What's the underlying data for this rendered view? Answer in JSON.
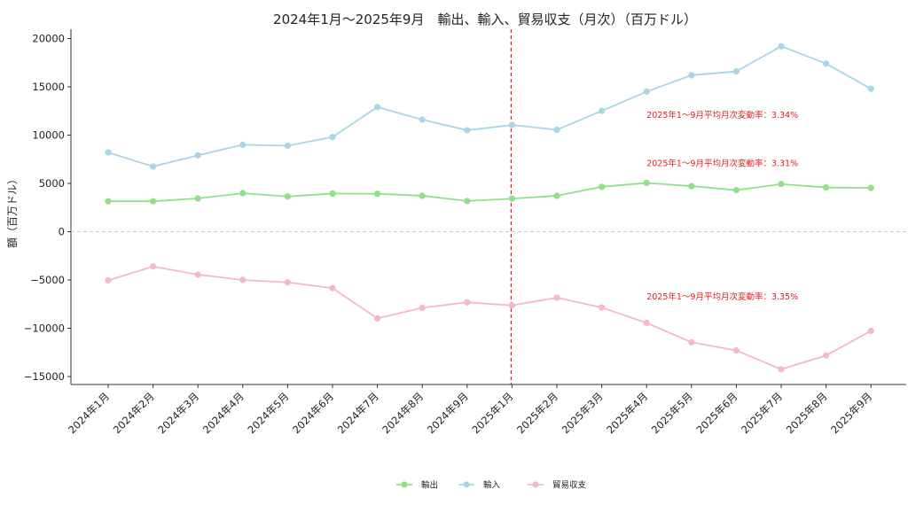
{
  "chart_data": {
    "type": "line",
    "title": "2024年1月～2025年9月　輸出、輸入、貿易収支（月次）（百万ドル）",
    "xlabel": "",
    "ylabel": "額（百万ドル）",
    "ylim": [
      -16000,
      21000
    ],
    "yticks": [
      20000,
      15000,
      10000,
      5000,
      0,
      -5000,
      -10000,
      -15000
    ],
    "ytick_labels": [
      "20000",
      "15000",
      "10000",
      "5000",
      "0",
      "−5000",
      "−10000",
      "−15000"
    ],
    "categories": [
      "2024年1月",
      "2024年2月",
      "2024年3月",
      "2024年4月",
      "2024年5月",
      "2024年6月",
      "2024年7月",
      "2024年8月",
      "2024年9月",
      "2025年1月",
      "2025年2月",
      "2025年3月",
      "2025年4月",
      "2025年5月",
      "2025年6月",
      "2025年7月",
      "2025年8月",
      "2025年9月"
    ],
    "series": [
      {
        "name": "輸出",
        "color": "#90e08a",
        "values": [
          3150,
          3150,
          3450,
          3980,
          3650,
          3950,
          3920,
          3720,
          3180,
          3420,
          3720,
          4650,
          5050,
          4720,
          4300,
          4930,
          4580,
          4530
        ]
      },
      {
        "name": "輸入",
        "color": "#a8d6e6",
        "values": [
          8200,
          6750,
          7900,
          9000,
          8900,
          9800,
          12900,
          11600,
          10500,
          11050,
          10550,
          12500,
          14500,
          16200,
          16600,
          19200,
          17400,
          14800
        ]
      },
      {
        "name": "貿易収支",
        "color": "#f5b8c8",
        "values": [
          -5050,
          -3600,
          -4450,
          -5000,
          -5250,
          -5850,
          -8980,
          -7880,
          -7320,
          -7630,
          -6830,
          -7850,
          -9450,
          -11450,
          -12300,
          -14250,
          -12820,
          -10270
        ]
      }
    ],
    "reference_line": {
      "category": "2025年1月",
      "color": "#e02020"
    },
    "zero_line": true,
    "grid": false,
    "legend_position": "bottom-center",
    "annotations": [
      {
        "text": "2025年1～9月平均月次変動率：3.34%",
        "at_category": "2025年4月",
        "y": 11800
      },
      {
        "text": "2025年1～9月平均月次変動率：3.31%",
        "at_category": "2025年4月",
        "y": 6800
      },
      {
        "text": "2025年1～9月平均月次変動率：3.35%",
        "at_category": "2025年4月",
        "y": -7000
      }
    ]
  }
}
